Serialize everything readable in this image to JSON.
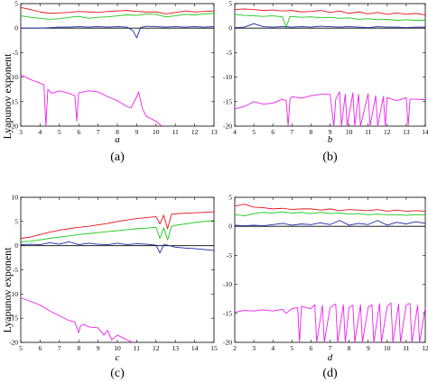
{
  "figure": {
    "ylabel_top": "Lyapunov exponent",
    "ylabel_bottom": "Lyapunov exponent"
  },
  "chart_data": [
    {
      "id": "a",
      "type": "line",
      "caption": "(a)",
      "xlabel": "a",
      "ylabel": "Lyapunov exponent",
      "xlim": [
        3,
        13
      ],
      "ylim": [
        -20,
        5
      ],
      "xticks": [
        3,
        4,
        5,
        6,
        7,
        8,
        9,
        10,
        11,
        12,
        13
      ],
      "yticks": [
        5,
        0,
        -5,
        -10,
        -15,
        -20
      ],
      "zero_line": true,
      "grid": false,
      "legend": "none",
      "series": [
        {
          "color": "#e8141c",
          "x": [
            3,
            3.5,
            4,
            4.5,
            5,
            5.5,
            6,
            6.5,
            7,
            7.5,
            8,
            8.5,
            9,
            9.5,
            10,
            10.5,
            11,
            11.5,
            12,
            12.5,
            13
          ],
          "y": [
            4.2,
            3.8,
            3.3,
            3.0,
            3.1,
            3.2,
            3.4,
            3.3,
            3.2,
            3.4,
            3.5,
            3.6,
            3.4,
            3.3,
            3.3,
            2.9,
            3.2,
            3.5,
            3.3,
            3.4,
            3.5
          ]
        },
        {
          "color": "#19c819",
          "x": [
            3,
            3.5,
            4,
            4.5,
            5,
            5.5,
            6,
            6.5,
            7,
            7.5,
            8,
            8.5,
            9,
            9.5,
            10,
            10.5,
            11,
            11.5,
            12,
            12.5,
            13
          ],
          "y": [
            2.5,
            2.2,
            2.0,
            1.8,
            1.9,
            2.2,
            2.4,
            2.0,
            2.2,
            2.3,
            2.5,
            2.7,
            2.6,
            2.9,
            2.8,
            2.3,
            2.5,
            2.8,
            2.7,
            2.9,
            3.0
          ]
        },
        {
          "color": "#1c2aa8",
          "x": [
            3,
            3.5,
            4,
            4.5,
            5,
            5.5,
            6,
            6.5,
            7,
            7.5,
            8,
            8.5,
            8.8,
            9,
            9.2,
            9.5,
            10,
            10.5,
            11,
            11.5,
            12,
            12.5,
            13
          ],
          "y": [
            0,
            0,
            0,
            0.1,
            0.2,
            0.2,
            0.3,
            0.2,
            0.3,
            0.2,
            0.3,
            0.2,
            -0.5,
            -2.0,
            0.1,
            0.4,
            0.3,
            0.2,
            0.3,
            0.2,
            0.3,
            0.2,
            0.3
          ]
        },
        {
          "color": "#ee20ee",
          "x": [
            3,
            3.5,
            4,
            4.2,
            4.3,
            4.4,
            4.6,
            5,
            5.5,
            5.8,
            5.9,
            6,
            6.5,
            7,
            7.5,
            8,
            8.5,
            8.7,
            9,
            9.1,
            9.3,
            9.5,
            10,
            10.3
          ],
          "y": [
            -9.5,
            -10.5,
            -11.2,
            -11.6,
            -20,
            -12.5,
            -13.3,
            -12.8,
            -13.3,
            -13.8,
            -19,
            -13.2,
            -12.8,
            -13.0,
            -14.0,
            -14.8,
            -16.0,
            -16.3,
            -14.0,
            -13.0,
            -16.5,
            -18.0,
            -19.0,
            -20.0
          ]
        }
      ]
    },
    {
      "id": "b",
      "type": "line",
      "caption": "(b)",
      "xlabel": "b",
      "ylabel": "Lyapunov exponent",
      "xlim": [
        4,
        14
      ],
      "ylim": [
        -20,
        5
      ],
      "xticks": [
        4,
        5,
        6,
        7,
        8,
        9,
        10,
        11,
        12,
        13,
        14
      ],
      "yticks": [
        5,
        0,
        -5,
        -10,
        -15,
        -20
      ],
      "zero_line": true,
      "grid": false,
      "legend": "none",
      "series": [
        {
          "color": "#e8141c",
          "x": [
            4,
            4.5,
            5,
            5.5,
            6,
            6.5,
            7,
            7.5,
            8,
            8.5,
            9,
            9.5,
            10,
            10.5,
            11,
            11.5,
            12,
            12.5,
            13,
            13.5,
            14
          ],
          "y": [
            3.8,
            3.9,
            3.8,
            3.6,
            3.7,
            3.5,
            3.6,
            3.3,
            3.4,
            3.6,
            3.2,
            3.5,
            3.0,
            3.3,
            2.9,
            3.2,
            2.8,
            3.1,
            2.8,
            3.0,
            2.7
          ]
        },
        {
          "color": "#19c819",
          "x": [
            4,
            4.5,
            5,
            5.5,
            6,
            6.5,
            6.7,
            6.9,
            7.5,
            8,
            8.5,
            9,
            9.5,
            10,
            10.5,
            11,
            11.5,
            12,
            12.5,
            13,
            13.5,
            14
          ],
          "y": [
            2.8,
            2.6,
            2.5,
            2.4,
            2.5,
            2.3,
            0.2,
            2.4,
            2.2,
            2.3,
            2.1,
            2.2,
            2.0,
            2.1,
            1.8,
            1.9,
            1.7,
            1.8,
            1.6,
            1.7,
            1.6,
            1.6
          ]
        },
        {
          "color": "#1c2aa8",
          "x": [
            4,
            4.5,
            5,
            5.5,
            6,
            6.5,
            7,
            7.5,
            8,
            8.5,
            9,
            9.5,
            10,
            10.5,
            11,
            11.5,
            12,
            12.5,
            13,
            13.5,
            14
          ],
          "y": [
            0.1,
            0.2,
            0.9,
            0.3,
            0.2,
            0.3,
            0.2,
            0.3,
            0.2,
            0.4,
            0.3,
            0.2,
            0.3,
            0.2,
            0.1,
            0.3,
            0.2,
            0.2,
            0.1,
            0.2,
            0.2
          ]
        },
        {
          "color": "#ee20ee",
          "x": [
            4,
            4.5,
            5,
            5.5,
            6,
            6.5,
            6.7,
            6.8,
            6.9,
            7,
            7.5,
            8,
            8.5,
            9,
            9.2,
            9.3,
            9.5,
            9.6,
            9.8,
            9.9,
            10.2,
            10.3,
            10.5,
            10.6,
            11,
            11.1,
            11.4,
            11.5,
            11.8,
            11.9,
            12,
            12.5,
            13,
            13.1,
            13.2,
            13.5,
            14
          ],
          "y": [
            -16.5,
            -16.0,
            -15.0,
            -15.5,
            -15.3,
            -14.5,
            -14.8,
            -20,
            -14.5,
            -14.0,
            -14.3,
            -13.8,
            -13.5,
            -13.5,
            -20,
            -14.5,
            -13.0,
            -20,
            -13.5,
            -20,
            -13.2,
            -20,
            -13.5,
            -20,
            -13.4,
            -20,
            -13.8,
            -20,
            -14.0,
            -20,
            -14.2,
            -14.8,
            -14.2,
            -20,
            -14.5,
            -14.5,
            -14.6
          ]
        }
      ]
    },
    {
      "id": "c",
      "type": "line",
      "caption": "(c)",
      "xlabel": "c",
      "ylabel": "Lyapunov exponent",
      "xlim": [
        5,
        15
      ],
      "ylim": [
        -20,
        10
      ],
      "xticks": [
        5,
        6,
        7,
        8,
        9,
        10,
        11,
        12,
        13,
        14,
        15
      ],
      "yticks": [
        10,
        5,
        0,
        -5,
        -10,
        -15,
        -20
      ],
      "zero_line": true,
      "grid": false,
      "legend": "none",
      "series": [
        {
          "color": "#e8141c",
          "x": [
            5,
            5.5,
            6,
            6.5,
            7,
            7.5,
            8,
            8.5,
            9,
            9.5,
            10,
            10.5,
            11,
            11.5,
            12,
            12.2,
            12.4,
            12.6,
            12.8,
            13,
            13.5,
            14,
            14.5,
            15
          ],
          "y": [
            1.5,
            1.8,
            2.3,
            2.8,
            3.2,
            3.5,
            3.8,
            4.0,
            4.3,
            4.6,
            5.0,
            5.3,
            5.6,
            5.8,
            6.0,
            4.5,
            6.3,
            3.5,
            6.5,
            6.6,
            6.7,
            6.8,
            6.9,
            7.0
          ]
        },
        {
          "color": "#19c819",
          "x": [
            5,
            5.5,
            6,
            6.5,
            7,
            7.5,
            8,
            8.5,
            9,
            9.5,
            10,
            10.5,
            11,
            11.5,
            12,
            12.2,
            12.4,
            12.6,
            12.8,
            13,
            13.5,
            14,
            14.5,
            15
          ],
          "y": [
            0.8,
            0.9,
            1.2,
            1.5,
            1.8,
            2.0,
            2.3,
            2.5,
            2.7,
            2.9,
            3.1,
            3.3,
            3.5,
            3.6,
            3.8,
            1.5,
            3.7,
            1.2,
            4.0,
            4.2,
            4.5,
            4.8,
            5.0,
            5.2
          ]
        },
        {
          "color": "#1c2aa8",
          "x": [
            5,
            5.5,
            6,
            6.5,
            7,
            7.5,
            8,
            8.5,
            9,
            9.5,
            10,
            10.5,
            11,
            11.5,
            12,
            12.2,
            12.4,
            12.6,
            13,
            13.5,
            14,
            14.5,
            15
          ],
          "y": [
            0.2,
            0.3,
            0.2,
            0.6,
            0.3,
            0.8,
            0.2,
            0.5,
            0.3,
            0.2,
            0.5,
            0.2,
            0.4,
            0.3,
            0.1,
            -1.5,
            0.2,
            0.1,
            -0.3,
            -0.5,
            -0.6,
            -0.8,
            -1.0
          ]
        },
        {
          "color": "#ee20ee",
          "x": [
            5,
            5.5,
            6,
            6.5,
            7,
            7.5,
            7.8,
            8,
            8.1,
            8.3,
            8.5,
            9,
            9.3,
            9.5,
            9.7,
            10,
            10.5,
            10.8
          ],
          "y": [
            -10.8,
            -11.5,
            -12.3,
            -13.5,
            -14.5,
            -15.5,
            -15.8,
            -18.0,
            -16.5,
            -16.3,
            -16.8,
            -17.0,
            -18.5,
            -17.5,
            -19.5,
            -18.5,
            -19.5,
            -20.0
          ]
        }
      ]
    },
    {
      "id": "d",
      "type": "line",
      "caption": "(d)",
      "xlabel": "d",
      "ylabel": "Lyapunov exponent",
      "xlim": [
        2,
        12
      ],
      "ylim": [
        -20,
        5
      ],
      "xticks": [
        2,
        3,
        4,
        5,
        6,
        7,
        8,
        9,
        10,
        11,
        12
      ],
      "yticks": [
        5,
        0,
        -5,
        -10,
        -15,
        -20
      ],
      "zero_line": true,
      "grid": false,
      "legend": "none",
      "series": [
        {
          "color": "#e8141c",
          "x": [
            2,
            2.5,
            3,
            3.5,
            4,
            4.5,
            5,
            5.5,
            6,
            6.5,
            7,
            7.5,
            8,
            8.5,
            9,
            9.5,
            10,
            10.5,
            11,
            11.5,
            12
          ],
          "y": [
            3.5,
            3.8,
            3.3,
            3.2,
            3.0,
            3.1,
            2.9,
            3.0,
            3.0,
            2.8,
            3.0,
            2.7,
            2.9,
            2.8,
            2.7,
            2.9,
            2.6,
            2.8,
            2.6,
            2.7,
            2.6
          ]
        },
        {
          "color": "#19c819",
          "x": [
            2,
            2.5,
            3,
            3.5,
            4,
            4.5,
            5,
            5.5,
            6,
            6.5,
            7,
            7.5,
            8,
            8.5,
            9,
            9.5,
            10,
            10.5,
            11,
            11.5,
            12
          ],
          "y": [
            2.0,
            1.8,
            2.2,
            2.4,
            2.3,
            2.5,
            2.3,
            2.4,
            2.2,
            2.4,
            2.2,
            2.3,
            2.1,
            2.2,
            2.0,
            2.1,
            2.0,
            2.0,
            1.9,
            2.0,
            2.0
          ]
        },
        {
          "color": "#1c2aa8",
          "x": [
            2,
            2.5,
            3,
            3.5,
            4,
            4.5,
            5,
            5.5,
            6,
            6.5,
            7,
            7.5,
            8,
            8.5,
            9,
            9.5,
            10,
            10.5,
            11,
            11.5,
            12
          ],
          "y": [
            0.2,
            0.1,
            0.2,
            0.1,
            0.3,
            0.5,
            0.2,
            0.4,
            0.3,
            0.6,
            0.3,
            1.0,
            0.2,
            0.5,
            0.3,
            1.0,
            0.2,
            0.7,
            0.4,
            0.8,
            0.5
          ]
        },
        {
          "color": "#ee20ee",
          "x": [
            2,
            2.5,
            3,
            3.5,
            4,
            4.5,
            4.7,
            5,
            5.3,
            5.4,
            5.5,
            6,
            6.2,
            6.3,
            6.6,
            6.7,
            7,
            7.3,
            7.4,
            7.7,
            7.8,
            8,
            8.2,
            8.3,
            8.6,
            8.7,
            9,
            9.2,
            9.3,
            9.6,
            9.7,
            10,
            10.2,
            10.3,
            10.6,
            10.7,
            11,
            11.2,
            11.3,
            11.6,
            11.7,
            12
          ],
          "y": [
            -14.8,
            -14.5,
            -14.6,
            -14.4,
            -14.6,
            -14.3,
            -15.0,
            -14.2,
            -14.0,
            -20,
            -13.8,
            -14.2,
            -13.5,
            -20,
            -13.6,
            -20,
            -14.0,
            -13.4,
            -20,
            -13.5,
            -20,
            -14.0,
            -13.6,
            -20,
            -13.5,
            -20,
            -14.0,
            -13.5,
            -20,
            -13.3,
            -20,
            -13.8,
            -13.2,
            -20,
            -13.4,
            -20,
            -13.5,
            -13.3,
            -20,
            -13.6,
            -20,
            -14.0
          ]
        }
      ]
    }
  ]
}
